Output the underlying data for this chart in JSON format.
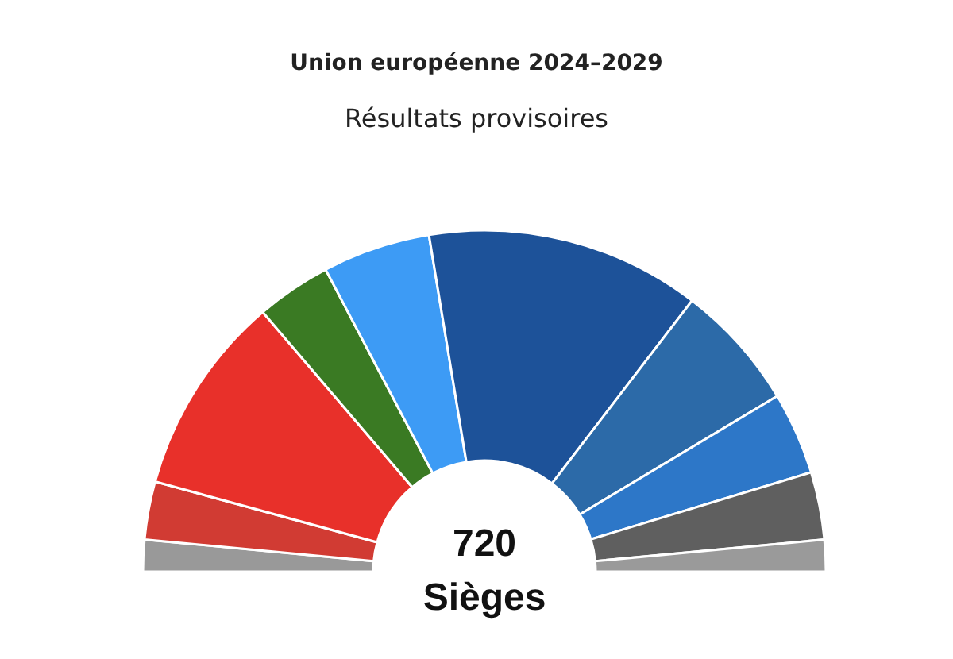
{
  "chart_data": {
    "type": "donut",
    "title": "Union européenne 2024–2029",
    "subtitle": "Résultats provisoires",
    "categories": [
      null,
      null,
      null,
      null,
      null,
      null,
      null,
      null,
      null,
      null
    ],
    "values": [
      3,
      5.5,
      19,
      7.1,
      10.2,
      26,
      12,
      7.8,
      6.4,
      3
    ],
    "colors": [
      "#999999",
      "#d13b33",
      "#e8302a",
      "#3a7a23",
      "#3d9bf5",
      "#1d5299",
      "#2c6aa8",
      "#2d77c8",
      "#5f5f5f",
      "#9a9a9a"
    ],
    "annotations": [
      "720",
      "Sièges"
    ]
  }
}
